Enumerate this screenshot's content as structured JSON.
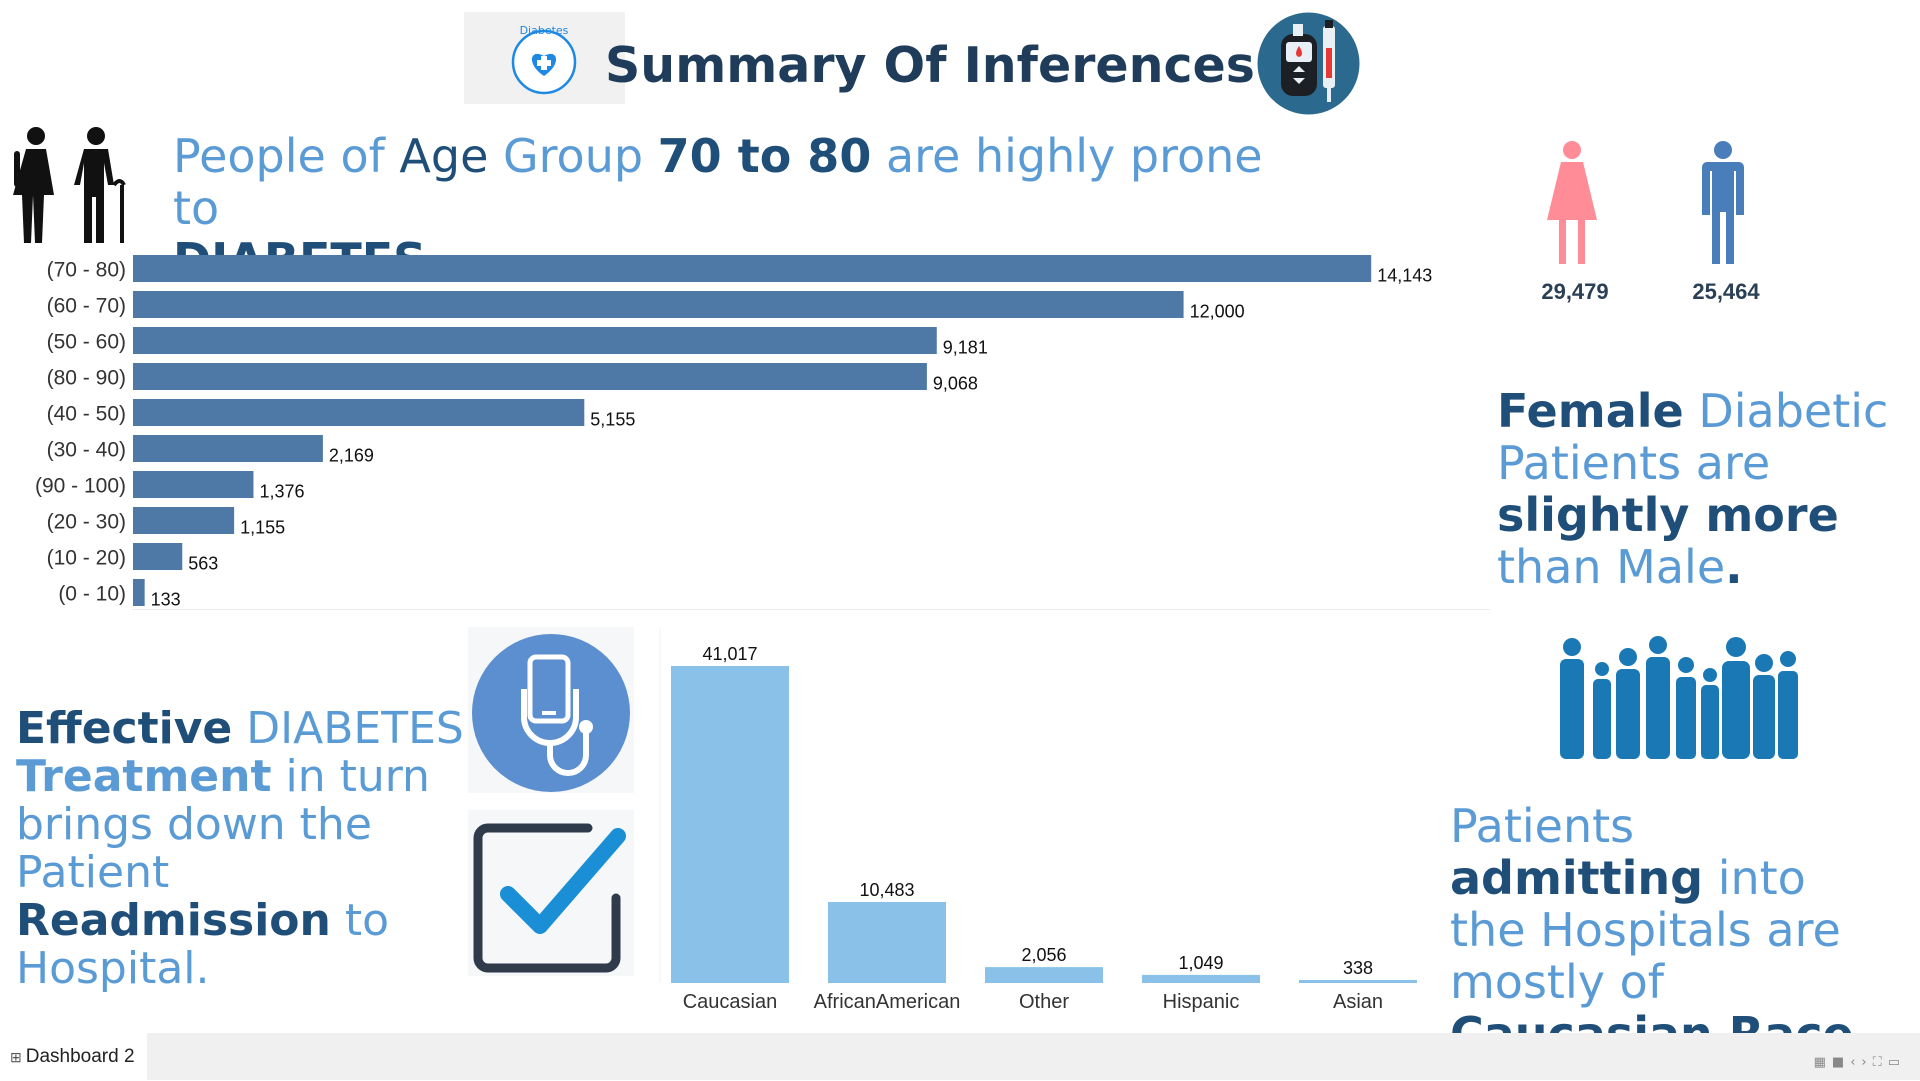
{
  "header": {
    "title": "Summary Of Inferences",
    "logo_text": "Diabetes"
  },
  "age_section": {
    "headline": {
      "p1": "People of ",
      "p2": "Age",
      "p3": " Group ",
      "p4": "70 to 80",
      "p5": " are highly prone to",
      "p6": "DIABETES"
    }
  },
  "gender_section": {
    "female_count": "29,479",
    "male_count": "25,464",
    "female_color": "#ff8c96",
    "male_color": "#4a7ebb",
    "headline": {
      "p1": "Female",
      "p2": " Diabetic Patients are ",
      "p3": "slightly more",
      "p4": " than Male",
      "p5": "."
    }
  },
  "treatment_section": {
    "headline": {
      "p1": "Effective",
      "p2": " DIABETES ",
      "p3": "Treatment",
      "p4": "  in turn brings down the Patient ",
      "p5": "Readmission",
      "p6": " to Hospital."
    }
  },
  "race_section": {
    "headline": {
      "p1": "Patients ",
      "p2": "admitting",
      "p3": " into the Hospitals are mostly of ",
      "p4": "Caucasian Race."
    }
  },
  "footer": {
    "tab_label": "Dashboard 2"
  },
  "chart_data": [
    {
      "type": "bar",
      "orientation": "horizontal",
      "categories": [
        "(70 - 80)",
        "(60 - 70)",
        "(50 - 60)",
        "(80 - 90)",
        "(40 - 50)",
        "(30 - 40)",
        "(90 - 100)",
        "(20 - 30)",
        "(10 - 20)",
        "(0 - 10)"
      ],
      "values": [
        14143,
        12000,
        9181,
        9068,
        5155,
        2169,
        1376,
        1155,
        563,
        133
      ],
      "value_labels": [
        "14,143",
        "12,000",
        "9,181",
        "9,068",
        "5,155",
        "2,169",
        "1,376",
        "1,155",
        "563",
        "133"
      ],
      "color": "#4e79a7",
      "xlim": [
        0,
        15500
      ],
      "grid": false
    },
    {
      "type": "bar",
      "orientation": "vertical",
      "categories": [
        "Caucasian",
        "AfricanAmerican",
        "Other",
        "Hispanic",
        "Asian"
      ],
      "values": [
        41017,
        10483,
        2056,
        1049,
        338
      ],
      "value_labels": [
        "41,017",
        "10,483",
        "2,056",
        "1,049",
        "338"
      ],
      "color": "#8ac1e8",
      "ylim": [
        0,
        41017
      ],
      "grid": false
    }
  ]
}
